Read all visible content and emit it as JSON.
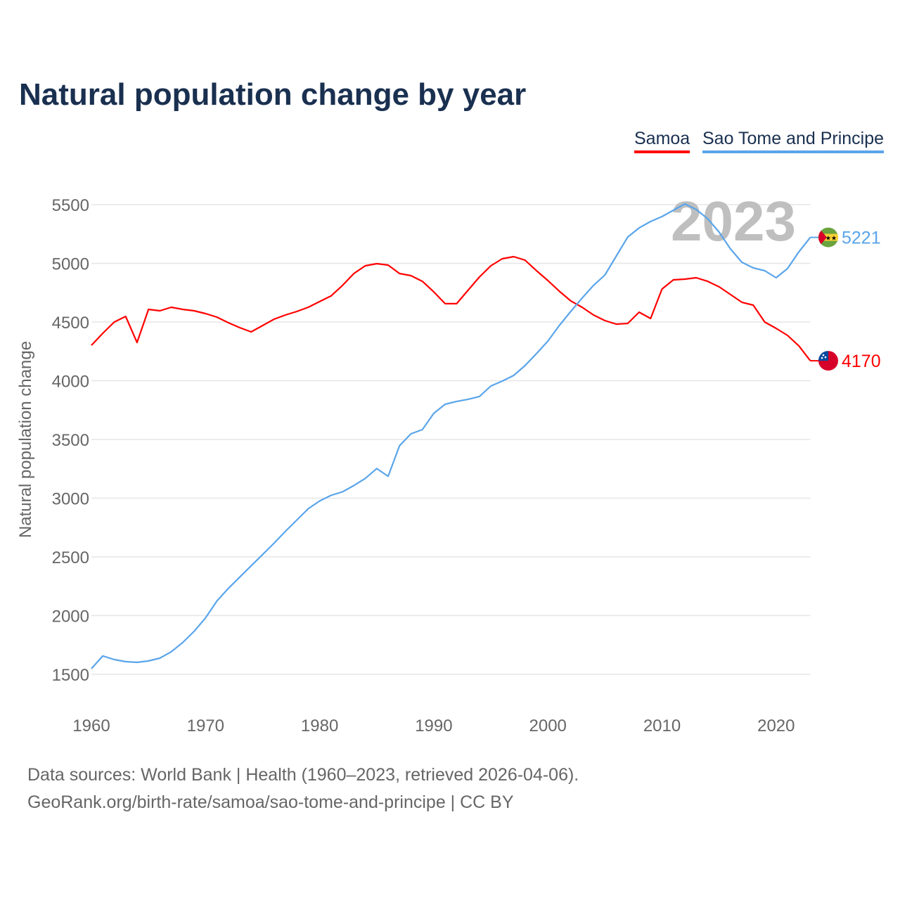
{
  "title": "Natural population change by year",
  "legend": [
    "Samoa",
    "Sao Tome and Principe"
  ],
  "sources": {
    "line1": "Data sources: World Bank | Health (1960–2023, retrieved 2026-04-06).",
    "line2": "GeoRank.org/birth-rate/samoa/sao-tome-and-principe | CC BY"
  },
  "chart_data": {
    "type": "line",
    "title": "Natural population change by year",
    "xlabel": "",
    "ylabel": "Natural population change",
    "xlim": [
      1960,
      2023
    ],
    "ylim": [
      1500,
      5500
    ],
    "yticks": [
      1500,
      2000,
      2500,
      3000,
      3500,
      4000,
      4500,
      5000,
      5500
    ],
    "xticks": [
      1960,
      1970,
      1980,
      1990,
      2000,
      2010,
      2020
    ],
    "year_label": "2023",
    "grid": true,
    "legend_position": "top-right",
    "x": [
      1960,
      1961,
      1962,
      1963,
      1964,
      1965,
      1966,
      1967,
      1968,
      1969,
      1970,
      1971,
      1972,
      1973,
      1974,
      1975,
      1976,
      1977,
      1978,
      1979,
      1980,
      1981,
      1982,
      1983,
      1984,
      1985,
      1986,
      1987,
      1988,
      1989,
      1990,
      1991,
      1992,
      1993,
      1994,
      1995,
      1996,
      1997,
      1998,
      1999,
      2000,
      2001,
      2002,
      2003,
      2004,
      2005,
      2006,
      2007,
      2008,
      2009,
      2010,
      2011,
      2012,
      2013,
      2014,
      2015,
      2016,
      2017,
      2018,
      2019,
      2020,
      2021,
      2022,
      2023
    ],
    "series": [
      {
        "name": "Samoa",
        "color": "#ff0000",
        "end_label": "4170",
        "values": [
          4302,
          4404,
          4500,
          4548,
          4326,
          4608,
          4596,
          4626,
          4608,
          4596,
          4572,
          4542,
          4494,
          4452,
          4416,
          4470,
          4524,
          4560,
          4590,
          4626,
          4674,
          4722,
          4812,
          4913,
          4979,
          4997,
          4985,
          4913,
          4895,
          4847,
          4757,
          4656,
          4656,
          4770,
          4883,
          4979,
          5039,
          5057,
          5027,
          4937,
          4853,
          4763,
          4680,
          4626,
          4560,
          4512,
          4482,
          4488,
          4584,
          4530,
          4781,
          4859,
          4865,
          4877,
          4847,
          4800,
          4734,
          4668,
          4644,
          4500,
          4446,
          4386,
          4296,
          4170
        ]
      },
      {
        "name": "Sao Tome and Principe",
        "color": "#5aa5ea",
        "end_label": "5221",
        "values": [
          1548,
          1656,
          1626,
          1608,
          1602,
          1614,
          1638,
          1692,
          1770,
          1866,
          1980,
          2124,
          2232,
          2328,
          2424,
          2520,
          2616,
          2718,
          2814,
          2910,
          2976,
          3024,
          3054,
          3108,
          3168,
          3252,
          3186,
          3446,
          3548,
          3584,
          3722,
          3800,
          3824,
          3842,
          3866,
          3955,
          3997,
          4045,
          4129,
          4231,
          4338,
          4470,
          4590,
          4704,
          4812,
          4901,
          5063,
          5224,
          5302,
          5356,
          5398,
          5452,
          5506,
          5458,
          5380,
          5266,
          5123,
          5009,
          4961,
          4937,
          4877,
          4955,
          5099,
          5221
        ]
      }
    ]
  }
}
